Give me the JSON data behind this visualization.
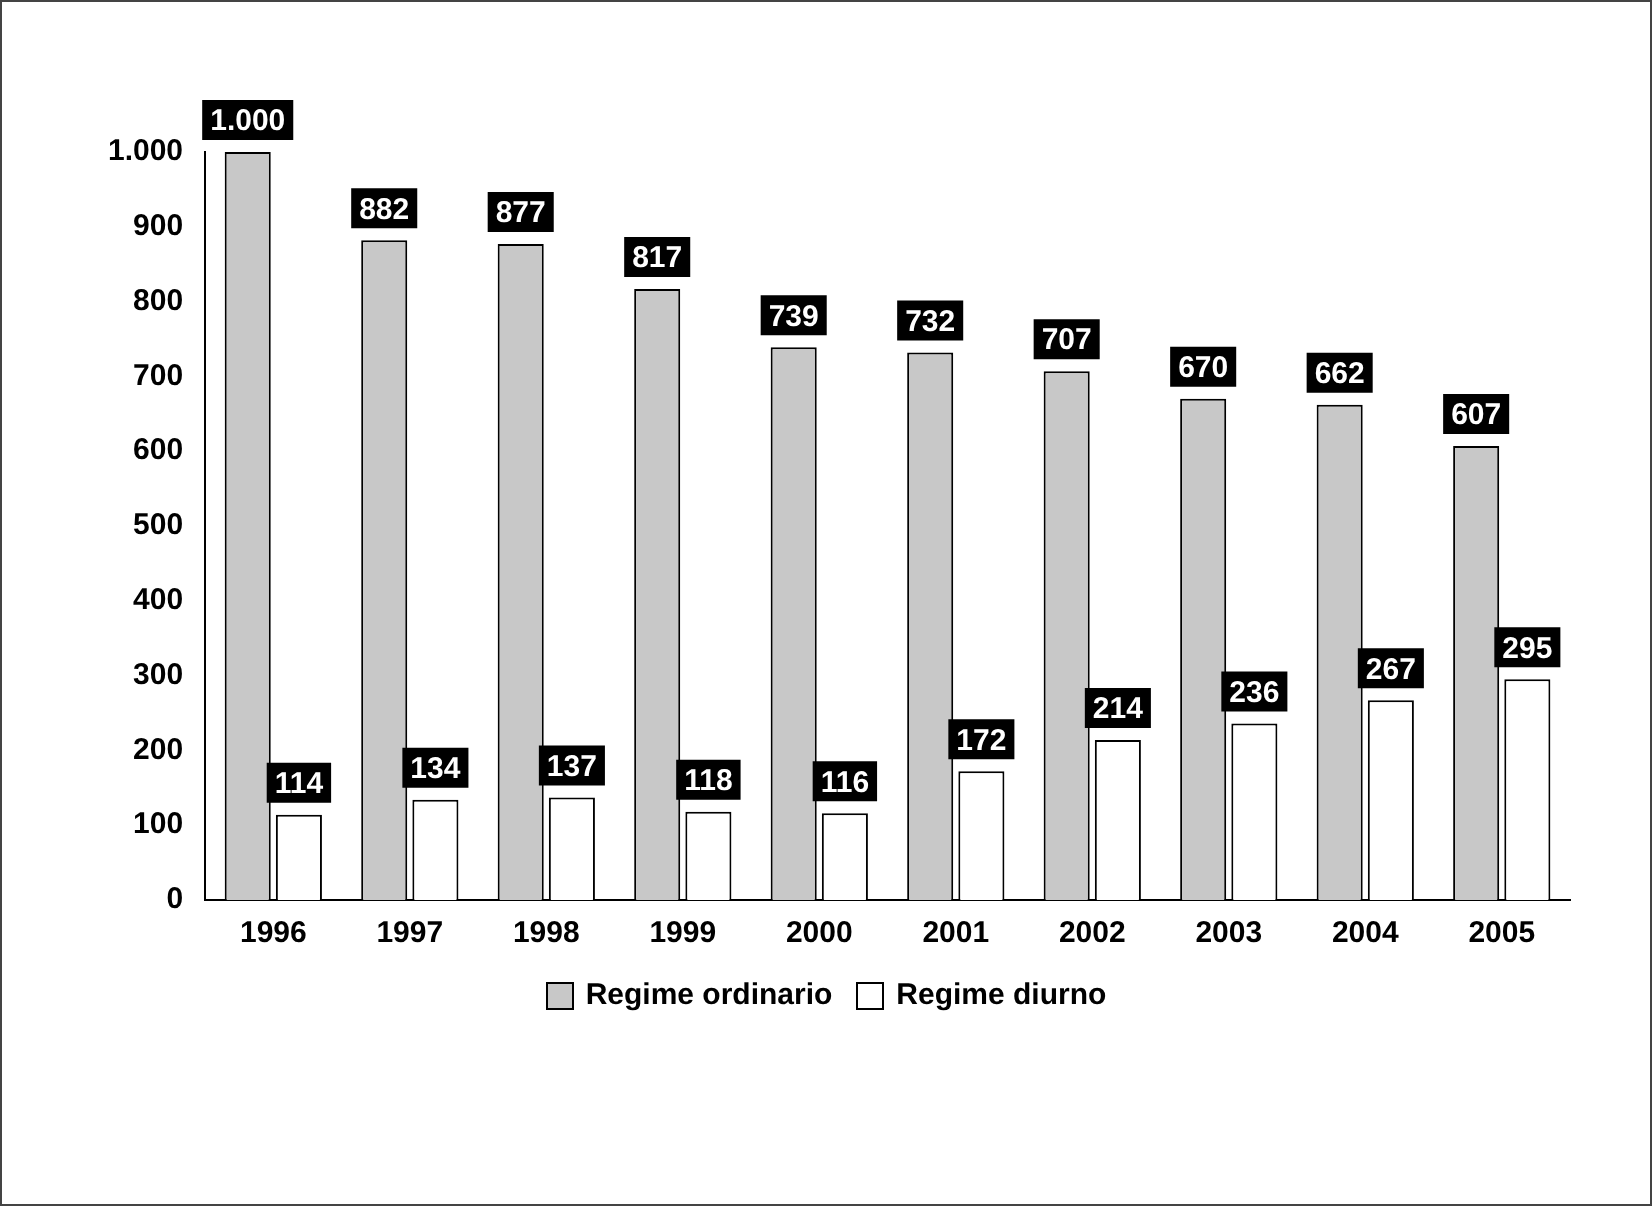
{
  "chart_data": {
    "type": "bar",
    "categories": [
      "1996",
      "1997",
      "1998",
      "1999",
      "2000",
      "2001",
      "2002",
      "2003",
      "2004",
      "2005"
    ],
    "series": [
      {
        "name": "Regime ordinario",
        "color": "#c8c8c8",
        "values": [
          1000,
          882,
          877,
          817,
          739,
          732,
          707,
          670,
          662,
          607
        ],
        "value_labels": [
          "1.000",
          "882",
          "877",
          "817",
          "739",
          "732",
          "707",
          "670",
          "662",
          "607"
        ]
      },
      {
        "name": "Regime diurno",
        "color": "#ffffff",
        "values": [
          114,
          134,
          137,
          118,
          116,
          172,
          214,
          236,
          267,
          295
        ],
        "value_labels": [
          "114",
          "134",
          "137",
          "118",
          "116",
          "172",
          "214",
          "236",
          "267",
          "295"
        ]
      }
    ],
    "ylim": [
      0,
      1000
    ],
    "yticks": [
      0,
      100,
      200,
      300,
      400,
      500,
      600,
      700,
      800,
      900,
      {
        "value": 1000,
        "label": "1.000"
      }
    ],
    "grid": false,
    "legend": "bottom"
  }
}
